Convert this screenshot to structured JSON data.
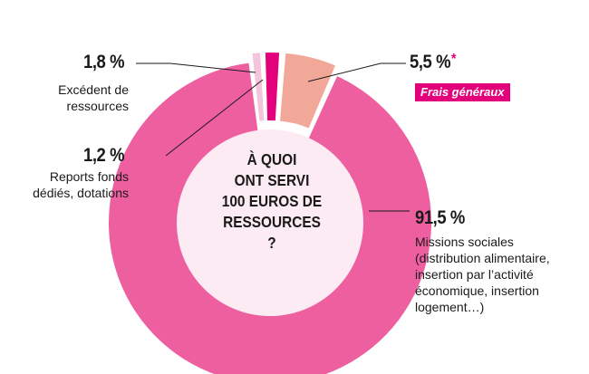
{
  "chart_data": {
    "type": "pie",
    "title": "À QUOI ONT SERVI 100 EUROS DE RESSOURCES ?",
    "title_lines": [
      "À QUOI",
      "ONT SERVI",
      "100 EUROS DE",
      "RESSOURCES",
      "?"
    ],
    "slices": [
      {
        "label": "Frais généraux",
        "value": 5.5,
        "value_label": "5,5 %",
        "asterisk": "*",
        "color": "#f2a898"
      },
      {
        "label": "Missions sociales",
        "value": 91.5,
        "value_label": "91,5 %",
        "desc_lines": [
          "Missions sociales",
          "(distribution alimentaire,",
          "insertion par l’activité",
          "économique, insertion",
          "logement…)"
        ],
        "color": "#ee5fa0"
      },
      {
        "label": "Reports fonds dédiés, dotations",
        "value": 1.2,
        "value_label": "1,2 %",
        "desc_lines": [
          "Reports fonds",
          "dédiés, dotations"
        ],
        "color": "#f3c4dc"
      },
      {
        "label": "Excédent de ressources",
        "value": 1.8,
        "value_label": "1,8 %",
        "desc_lines": [
          "Excédent de",
          "ressources"
        ],
        "color": "#e3007b"
      }
    ],
    "center_fill": "#fcebf3",
    "accent": "#e3007b"
  }
}
